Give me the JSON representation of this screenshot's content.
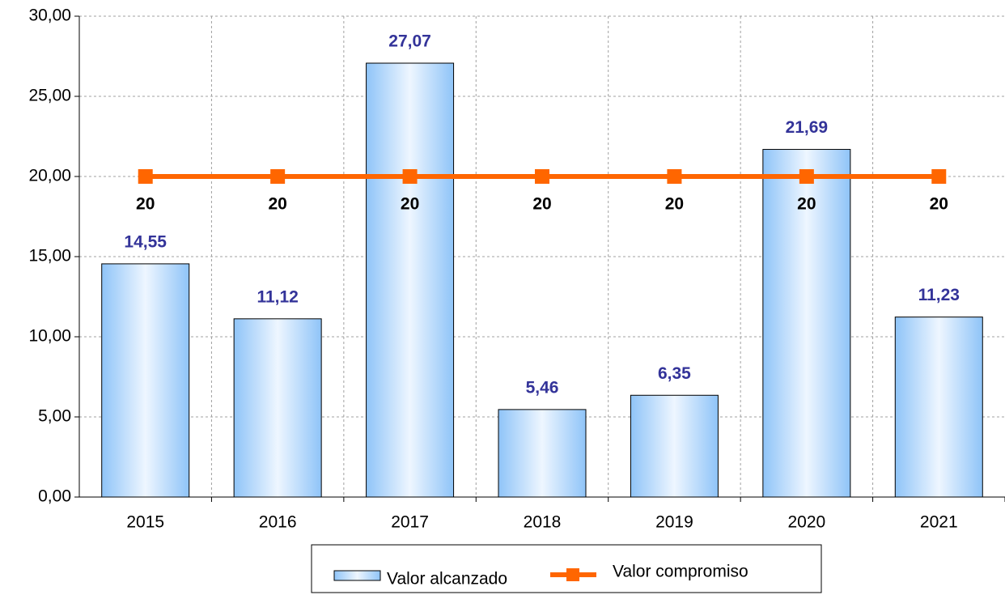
{
  "chart_data": {
    "type": "bar",
    "categories": [
      "2015",
      "2016",
      "2017",
      "2018",
      "2019",
      "2020",
      "2021"
    ],
    "series": [
      {
        "name": "Valor alcanzado",
        "type": "bar",
        "color": "#9fcfff",
        "values": [
          14.55,
          11.12,
          27.07,
          5.46,
          6.35,
          21.69,
          11.23
        ],
        "value_labels": [
          "14,55",
          "11,12",
          "27,07",
          "5,46",
          "6,35",
          "21,69",
          "11,23"
        ]
      },
      {
        "name": "Valor compromiso",
        "type": "line",
        "color": "#ff6600",
        "values": [
          20,
          20,
          20,
          20,
          20,
          20,
          20
        ]
      }
    ],
    "ylim": [
      0,
      30
    ],
    "yticks": [
      {
        "value": 0,
        "label": "0,00"
      },
      {
        "value": 5,
        "label": "5,00"
      },
      {
        "value": 10,
        "label": "10,00"
      },
      {
        "value": 15,
        "label": "15,00"
      },
      {
        "value": 20,
        "label": "20,00"
      },
      {
        "value": 25,
        "label": "25,00"
      },
      {
        "value": 30,
        "label": "30,00"
      }
    ],
    "grid": true,
    "legend": "bottom"
  }
}
